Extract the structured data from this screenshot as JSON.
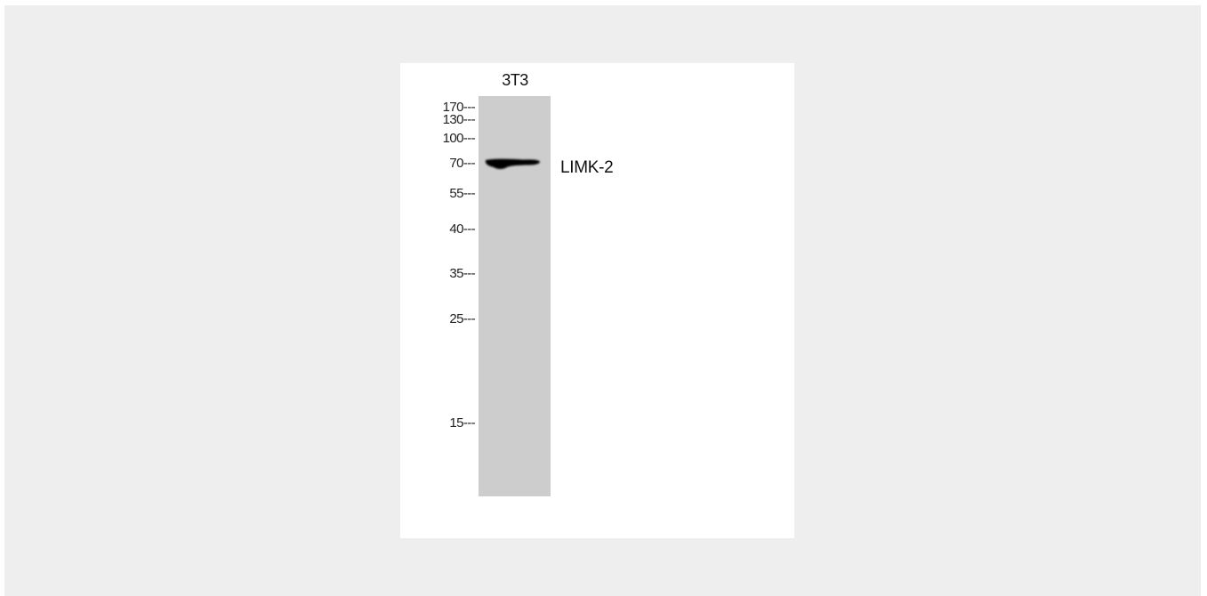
{
  "lane_label": "3T3",
  "markers": [
    {
      "label": "170---",
      "kda": 170
    },
    {
      "label": "130---",
      "kda": 130
    },
    {
      "label": "100---",
      "kda": 100
    },
    {
      "label": "70---",
      "kda": 70
    },
    {
      "label": "55---",
      "kda": 55
    },
    {
      "label": "40---",
      "kda": 40
    },
    {
      "label": "35---",
      "kda": 35
    },
    {
      "label": "25---",
      "kda": 25
    },
    {
      "label": "15---",
      "kda": 15
    }
  ],
  "band": {
    "label": "LIMK-2",
    "kda": 70
  },
  "colors": {
    "viewer_background": "#eeeeee",
    "lane": "#cdcdcd",
    "band": "#050505"
  }
}
